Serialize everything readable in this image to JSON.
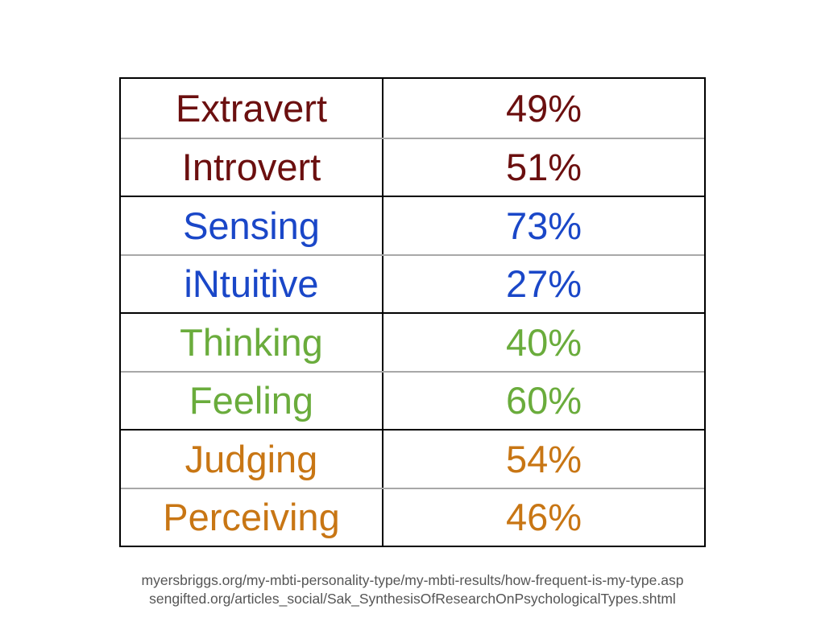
{
  "table": {
    "rows": [
      {
        "trait": "Extravert",
        "percent": "49%",
        "color": "#6b0f0f"
      },
      {
        "trait": "Introvert",
        "percent": "51%",
        "color": "#6b0f0f"
      },
      {
        "trait": "Sensing",
        "percent": "73%",
        "color": "#1a47c8"
      },
      {
        "trait": "iNtuitive",
        "percent": "27%",
        "color": "#1a47c8"
      },
      {
        "trait": "Thinking",
        "percent": "40%",
        "color": "#6aac3c"
      },
      {
        "trait": "Feeling",
        "percent": "60%",
        "color": "#6aac3c"
      },
      {
        "trait": "Judging",
        "percent": "54%",
        "color": "#c87614"
      },
      {
        "trait": "Perceiving",
        "percent": "46%",
        "color": "#c87614"
      }
    ]
  },
  "sources": {
    "line1": "myersbriggs.org/my-mbti-personality-type/my-mbti-results/how-frequent-is-my-type.asp",
    "line2": "sengifted.org/articles_social/Sak_SynthesisOfResearchOnPsychologicalTypes.shtml"
  }
}
